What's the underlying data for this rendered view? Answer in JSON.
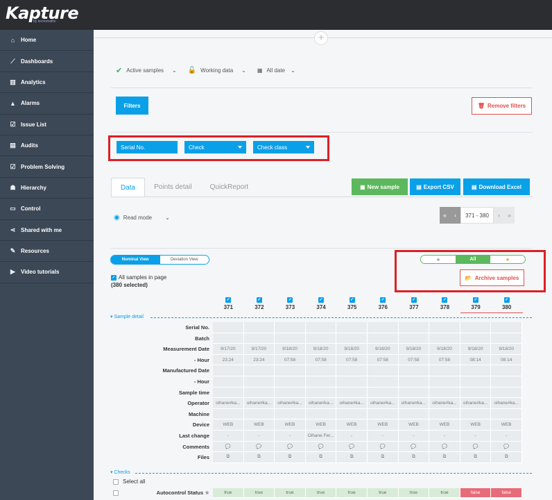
{
  "app": {
    "logo": "Kapture",
    "logo_sub": "by tecnomatrix"
  },
  "sidebar": {
    "items": [
      {
        "label": "Home",
        "icon": "home-icon",
        "glyph": "⌂"
      },
      {
        "label": "Dashboards",
        "icon": "line-chart-icon",
        "glyph": "⟋"
      },
      {
        "label": "Analytics",
        "icon": "bar-chart-icon",
        "glyph": "▥"
      },
      {
        "label": "Alarms",
        "icon": "warning-icon",
        "glyph": "▲"
      },
      {
        "label": "Issue List",
        "icon": "checkbox-icon",
        "glyph": "☑"
      },
      {
        "label": "Audits",
        "icon": "document-icon",
        "glyph": "▤"
      },
      {
        "label": "Problem Solving",
        "icon": "checkbox-icon",
        "glyph": "☑"
      },
      {
        "label": "Hierarchy",
        "icon": "users-icon",
        "glyph": "☗"
      },
      {
        "label": "Control",
        "icon": "monitor-icon",
        "glyph": "▭"
      },
      {
        "label": "Shared with me",
        "icon": "share-icon",
        "glyph": "⋖"
      },
      {
        "label": "Resources",
        "icon": "wrench-icon",
        "glyph": "✎"
      },
      {
        "label": "Video tutorials",
        "icon": "video-icon",
        "glyph": "▶"
      }
    ]
  },
  "filters": {
    "active_samples": "Active samples",
    "working_data": "Working data",
    "all_date": "All date",
    "filters_button": "Filters",
    "remove_filters": "Remove filters",
    "serial_no": "Serial No.",
    "check": "Check",
    "check_class": "Check class"
  },
  "tabs": [
    {
      "label": "Data",
      "active": true
    },
    {
      "label": "Points detail"
    },
    {
      "label": "QuickReport"
    }
  ],
  "actions": {
    "new_sample": "New sample",
    "export_csv": "Export CSV",
    "download_excel": "Download Excel",
    "archive_samples": "Archive samples"
  },
  "read_mode": "Read mode",
  "pager": {
    "range": "371 - 380"
  },
  "view_toggle": {
    "nominal": "Nominal View",
    "deviation": "Deviation View"
  },
  "star_filter": {
    "all": "All"
  },
  "select": {
    "all_in_page": "All samples in page",
    "selected": "(380 selected)",
    "select_all": "Select all"
  },
  "sections": {
    "sample_detail": "Sample detail",
    "checks": "Checks"
  },
  "columns": [
    "371",
    "372",
    "373",
    "374",
    "375",
    "376",
    "377",
    "378",
    "379",
    "380"
  ],
  "rows": [
    {
      "label": "Serial No.",
      "values": [
        "",
        "",
        "",
        "",
        "",
        "",
        "",
        "",
        "",
        ""
      ]
    },
    {
      "label": "Batch",
      "values": [
        "",
        "",
        "",
        "",
        "",
        "",
        "",
        "",
        "",
        ""
      ]
    },
    {
      "label": "Measurement Date",
      "values": [
        "9/17/20",
        "9/17/20",
        "9/18/20",
        "9/18/20",
        "9/18/20",
        "9/18/20",
        "9/18/20",
        "9/18/20",
        "9/18/20",
        "9/18/20"
      ]
    },
    {
      "label": "- Hour",
      "values": [
        "23:24",
        "23:24",
        "07:58",
        "07:58",
        "07:58",
        "07:58",
        "07:58",
        "07:58",
        "08:14",
        "08:14"
      ]
    },
    {
      "label": "Manufactured Date",
      "values": [
        "",
        "",
        "",
        "",
        "",
        "",
        "",
        "",
        "",
        ""
      ]
    },
    {
      "label": "- Hour",
      "values": [
        "",
        "",
        "",
        "",
        "",
        "",
        "",
        "",
        "",
        ""
      ]
    },
    {
      "label": "Sample time",
      "values": [
        "",
        "",
        "",
        "",
        "",
        "",
        "",
        "",
        "",
        ""
      ]
    },
    {
      "label": "Operator",
      "values": [
        "oihane#ka...",
        "oihane#ka...",
        "oihane#ka...",
        "oihane#ka...",
        "oihane#ka...",
        "oihane#ka...",
        "oihane#ka...",
        "oihane#ka...",
        "oihane#ka...",
        "oihane#ka..."
      ]
    },
    {
      "label": "Machine",
      "values": [
        "",
        "",
        "",
        "",
        "",
        "",
        "",
        "",
        "",
        ""
      ]
    },
    {
      "label": "Device",
      "values": [
        "WEB",
        "WEB",
        "WEB",
        "WEB",
        "WEB",
        "WEB",
        "WEB",
        "WEB",
        "WEB",
        "WEB"
      ]
    },
    {
      "label": "Last change",
      "values": [
        "-",
        "-",
        "-",
        "Oihane Fer...",
        "-",
        "-",
        "-",
        "-",
        "-",
        "-"
      ]
    },
    {
      "label": "Comments",
      "values": [
        "💬",
        "💬",
        "💬",
        "💬",
        "💬",
        "💬",
        "💬",
        "💬",
        "💬",
        "💬"
      ]
    },
    {
      "label": "Files",
      "values": [
        "⧉",
        "⧉",
        "⧉",
        "⧉",
        "⧉",
        "⧉",
        "⧉",
        "⧉",
        "⧉",
        "⧉"
      ]
    }
  ],
  "autocontrol": {
    "label": "Autocontrol Status",
    "values": [
      "true",
      "true",
      "true",
      "true",
      "true",
      "true",
      "true",
      "true",
      "false",
      "false"
    ]
  }
}
